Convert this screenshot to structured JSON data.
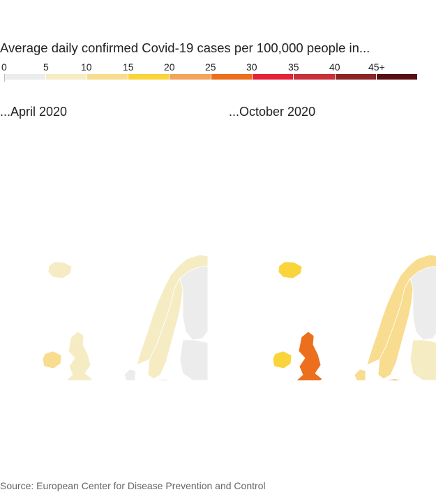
{
  "title": "Average daily confirmed Covid-19 cases per 100,000 people in...",
  "legend": {
    "ticks": [
      "0",
      "5",
      "10",
      "15",
      "20",
      "25",
      "30",
      "35",
      "40",
      "45+"
    ],
    "colors": [
      "#ececec",
      "#f6ecc4",
      "#f8dc8f",
      "#f9d43a",
      "#f0a55a",
      "#ec6f1e",
      "#e52336",
      "#c8303a",
      "#8c2526",
      "#5a0e13"
    ]
  },
  "maps": [
    {
      "title": "...April 2020",
      "regions": {
        "iceland": "#f6ecc4",
        "ireland": "#f8dc8f",
        "uk": "#f6ecc4",
        "norway": "#f6ecc4",
        "sweden": "#f6ecc4",
        "finland": "#ececec",
        "baltics": "#ececec",
        "denmark": "#ececec",
        "netherlands": "#ececec",
        "belgium": "#f8dc8f",
        "france": "#ececec",
        "germany": "#ececec",
        "poland": "#ececec",
        "czech": "#ececec",
        "austria": "#ececec",
        "switzerland": "#ececec",
        "italy": "#f6ecc4",
        "spain": "#f6ecc4",
        "portugal": "#f6ecc4",
        "balkans": "#ececec",
        "hungary": "#ececec",
        "romania": "#ececec",
        "greece": "#ececec",
        "cyprus": "#ececec"
      }
    },
    {
      "title": "...October 2020",
      "regions": {
        "iceland": "#f9d43a",
        "ireland": "#f9d43a",
        "uk": "#ec6f1e",
        "norway": "#f8dc8f",
        "sweden": "#f8dc8f",
        "finland": "#ececec",
        "baltics": "#f6ecc4",
        "denmark": "#f8dc8f",
        "netherlands": "#8c2526",
        "belgium": "#5a0e13",
        "france": "#c8303a",
        "germany": "#f6ecc4",
        "poland": "#f0a55a",
        "czech": "#5a0e13",
        "austria": "#ec6f1e",
        "switzerland": "#e52336",
        "italy": "#f9d43a",
        "spain": "#ec6f1e",
        "portugal": "#f9d43a",
        "balkans": "#f0a55a",
        "hungary": "#f9d43a",
        "romania": "#f9d43a",
        "greece": "#f8dc8f",
        "cyprus": "#f6ecc4"
      }
    }
  ],
  "source": "Source: European Center for Disease Prevention and Control"
}
